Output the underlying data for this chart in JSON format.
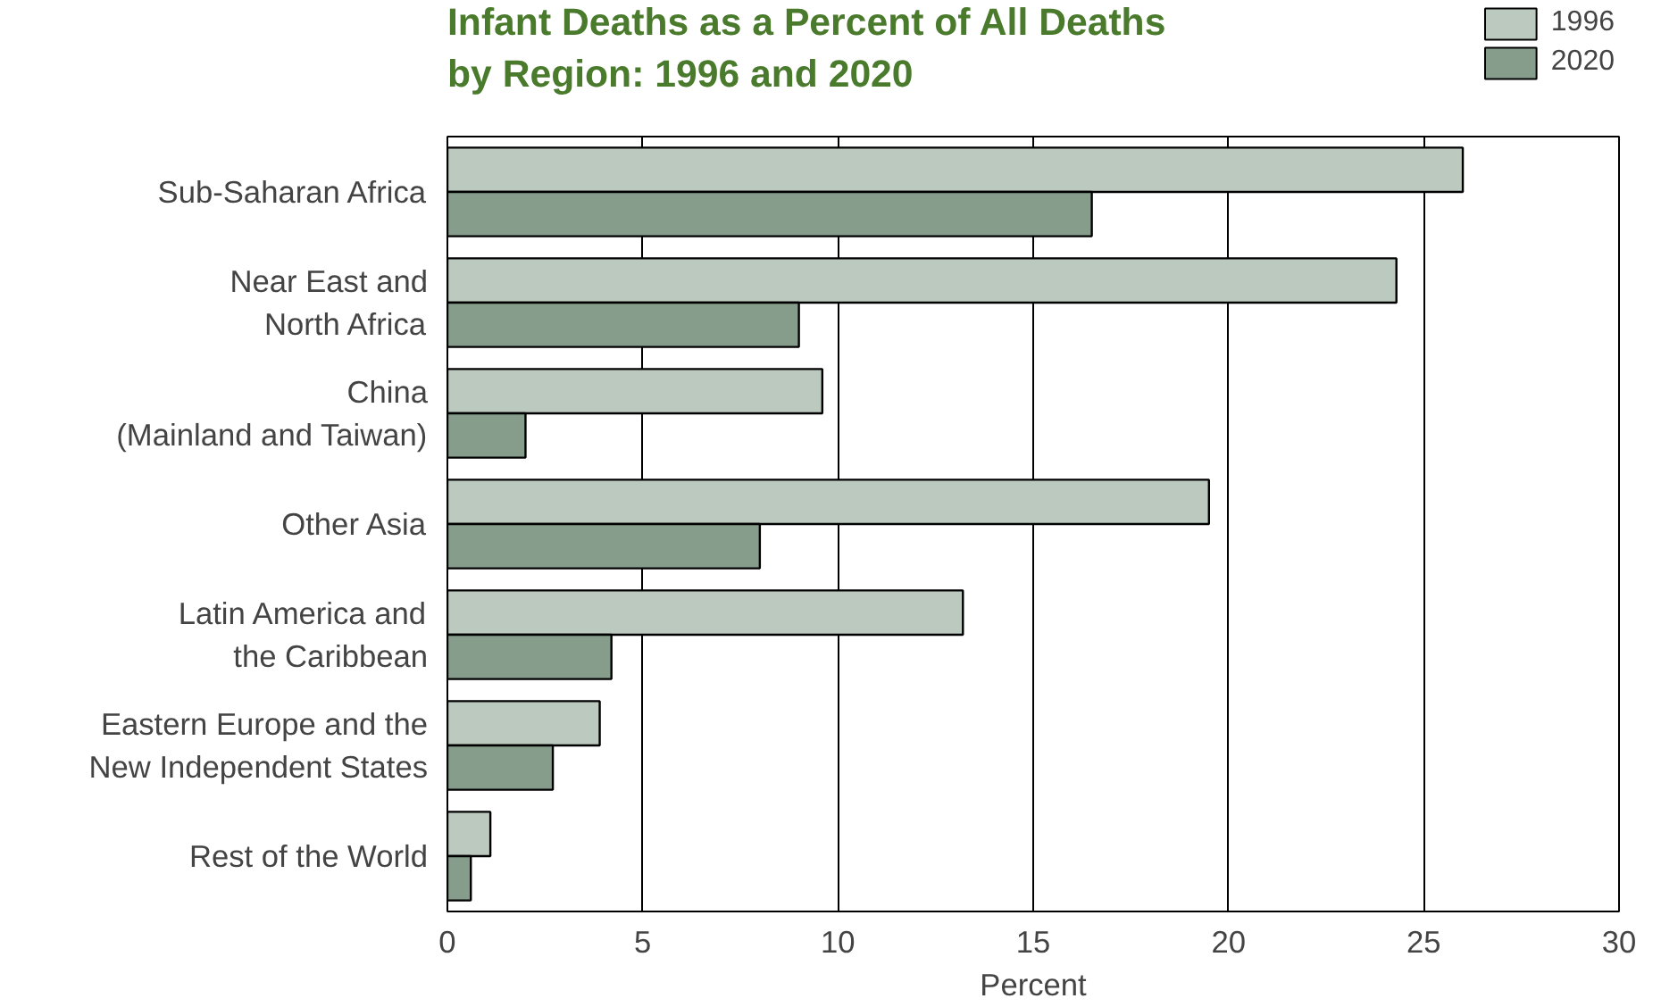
{
  "chart_data": {
    "type": "bar",
    "orientation": "horizontal",
    "title": "Infant Deaths as a Percent of All Deaths\nby Region:  1996 and 2020",
    "xlabel": "Percent",
    "categories": [
      "Sub-Saharan Africa",
      "Near East and\nNorth Africa",
      "China\n(Mainland and Taiwan)",
      "Other Asia",
      "Latin America and\nthe Caribbean",
      "Eastern Europe and the\nNew Independent States",
      "Rest of the World"
    ],
    "series": [
      {
        "name": "1996",
        "color": "#bcc9be",
        "values": [
          26.0,
          24.3,
          9.6,
          19.5,
          13.2,
          3.9,
          1.1
        ]
      },
      {
        "name": "2020",
        "color": "#869d8c",
        "values": [
          16.5,
          9.0,
          2.0,
          8.0,
          4.2,
          2.7,
          0.6
        ]
      }
    ],
    "xlim": [
      0,
      30
    ],
    "xticks": [
      0,
      5,
      10,
      15,
      20,
      25,
      30
    ],
    "grid": "x",
    "legend": "top right"
  }
}
